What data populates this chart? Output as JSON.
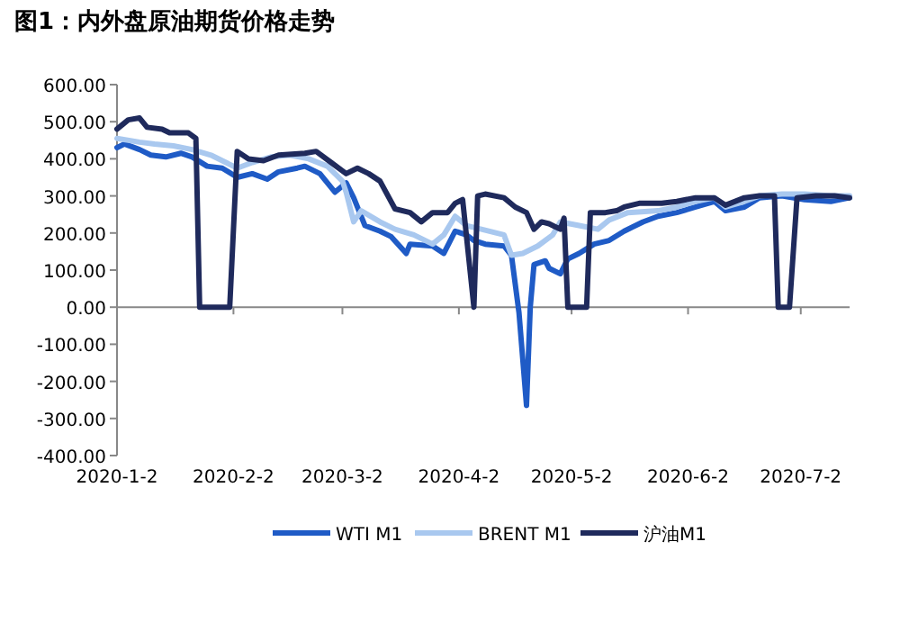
{
  "chart_data": {
    "type": "line",
    "title": "图1：内外盘原油期货价格走势",
    "legend": "bottom",
    "marker": "none",
    "line_style": "solid",
    "xlim": [
      "2020-01-02",
      "2020-07-15"
    ],
    "xticks": [
      {
        "value": "2020-01-02",
        "label": "2020-1-2"
      },
      {
        "value": "2020-02-02",
        "label": "2020-2-2"
      },
      {
        "value": "2020-03-02",
        "label": "2020-3-2"
      },
      {
        "value": "2020-04-02",
        "label": "2020-4-2"
      },
      {
        "value": "2020-05-02",
        "label": "2020-5-2"
      },
      {
        "value": "2020-06-02",
        "label": "2020-6-2"
      },
      {
        "value": "2020-07-02",
        "label": "2020-7-2"
      }
    ],
    "ylim": [
      -400,
      600
    ],
    "yticks": [
      {
        "value": -400,
        "label": "-400.00"
      },
      {
        "value": -300,
        "label": "-300.00"
      },
      {
        "value": -200,
        "label": "-200.00"
      },
      {
        "value": -100,
        "label": "-100.00"
      },
      {
        "value": 0,
        "label": "0.00"
      },
      {
        "value": 100,
        "label": "100.00"
      },
      {
        "value": 200,
        "label": "200.00"
      },
      {
        "value": 300,
        "label": "300.00"
      },
      {
        "value": 400,
        "label": "400.00"
      },
      {
        "value": 500,
        "label": "500.00"
      },
      {
        "value": 600,
        "label": "600.00"
      }
    ],
    "series": [
      {
        "name": "WTI M1",
        "color": "#1f5bc6",
        "x": [
          "2020-01-02",
          "2020-01-04",
          "2020-01-08",
          "2020-01-11",
          "2020-01-15",
          "2020-01-19",
          "2020-01-22",
          "2020-01-26",
          "2020-01-30",
          "2020-02-03",
          "2020-02-07",
          "2020-02-11",
          "2020-02-14",
          "2020-02-19",
          "2020-02-21",
          "2020-02-25",
          "2020-02-29",
          "2020-03-03",
          "2020-03-05",
          "2020-03-08",
          "2020-03-12",
          "2020-03-15",
          "2020-03-19",
          "2020-03-20",
          "2020-03-26",
          "2020-03-29",
          "2020-04-01",
          "2020-04-04",
          "2020-04-06",
          "2020-04-09",
          "2020-04-14",
          "2020-04-16",
          "2020-04-18",
          "2020-04-20",
          "2020-04-21",
          "2020-04-22",
          "2020-04-25",
          "2020-04-26",
          "2020-04-29",
          "2020-05-01",
          "2020-05-04",
          "2020-05-08",
          "2020-05-12",
          "2020-05-16",
          "2020-05-21",
          "2020-05-25",
          "2020-05-30",
          "2020-06-04",
          "2020-06-09",
          "2020-06-12",
          "2020-06-17",
          "2020-06-21",
          "2020-06-27",
          "2020-07-03",
          "2020-07-10",
          "2020-07-15"
        ],
        "values": [
          430,
          440,
          425,
          410,
          405,
          415,
          405,
          380,
          375,
          350,
          360,
          345,
          365,
          375,
          380,
          360,
          310,
          335,
          295,
          220,
          205,
          190,
          145,
          170,
          165,
          145,
          205,
          195,
          180,
          170,
          165,
          140,
          -15,
          -265,
          0,
          115,
          125,
          105,
          90,
          130,
          145,
          170,
          180,
          205,
          230,
          245,
          255,
          270,
          285,
          260,
          270,
          295,
          300,
          290,
          285,
          295
        ]
      },
      {
        "name": "BRENT M1",
        "color": "#a9c8ef",
        "x": [
          "2020-01-02",
          "2020-01-08",
          "2020-01-12",
          "2020-01-17",
          "2020-01-22",
          "2020-01-27",
          "2020-01-31",
          "2020-02-03",
          "2020-02-07",
          "2020-02-12",
          "2020-02-17",
          "2020-02-22",
          "2020-02-27",
          "2020-03-02",
          "2020-03-03",
          "2020-03-05",
          "2020-03-07",
          "2020-03-12",
          "2020-03-16",
          "2020-03-21",
          "2020-03-26",
          "2020-03-29",
          "2020-04-01",
          "2020-04-04",
          "2020-04-08",
          "2020-04-14",
          "2020-04-16",
          "2020-04-19",
          "2020-04-23",
          "2020-04-27",
          "2020-04-29",
          "2020-05-04",
          "2020-05-09",
          "2020-05-12",
          "2020-05-17",
          "2020-05-25",
          "2020-05-30",
          "2020-06-04",
          "2020-06-09",
          "2020-06-12",
          "2020-06-17",
          "2020-06-21",
          "2020-06-27",
          "2020-07-03",
          "2020-07-10",
          "2020-07-15"
        ],
        "values": [
          455,
          445,
          440,
          435,
          425,
          410,
          390,
          375,
          390,
          405,
          410,
          400,
          380,
          340,
          310,
          230,
          260,
          230,
          210,
          195,
          170,
          195,
          245,
          220,
          210,
          195,
          140,
          145,
          165,
          195,
          230,
          220,
          210,
          235,
          255,
          260,
          270,
          285,
          295,
          270,
          285,
          300,
          305,
          305,
          300,
          300
        ]
      },
      {
        "name": "沪油M1",
        "color": "#1f2a5c",
        "x": [
          "2020-01-02",
          "2020-01-05",
          "2020-01-08",
          "2020-01-10",
          "2020-01-14",
          "2020-01-16",
          "2020-01-21",
          "2020-01-23",
          "2020-01-24",
          "2020-02-01",
          "2020-02-03",
          "2020-02-06",
          "2020-02-10",
          "2020-02-14",
          "2020-02-21",
          "2020-02-24",
          "2020-02-28",
          "2020-03-03",
          "2020-03-06",
          "2020-03-09",
          "2020-03-12",
          "2020-03-16",
          "2020-03-20",
          "2020-03-23",
          "2020-03-26",
          "2020-03-30",
          "2020-04-01",
          "2020-04-03",
          "2020-04-06",
          "2020-04-07",
          "2020-04-09",
          "2020-04-14",
          "2020-04-17",
          "2020-04-20",
          "2020-04-22",
          "2020-04-24",
          "2020-04-26",
          "2020-04-29",
          "2020-04-30",
          "2020-05-01",
          "2020-05-06",
          "2020-05-07",
          "2020-05-11",
          "2020-05-14",
          "2020-05-16",
          "2020-05-20",
          "2020-05-26",
          "2020-05-30",
          "2020-06-04",
          "2020-06-09",
          "2020-06-12",
          "2020-06-17",
          "2020-06-21",
          "2020-06-25",
          "2020-06-26",
          "2020-06-29",
          "2020-07-01",
          "2020-07-06",
          "2020-07-11",
          "2020-07-15"
        ],
        "values": [
          480,
          505,
          510,
          485,
          480,
          470,
          470,
          455,
          0,
          0,
          420,
          400,
          395,
          410,
          415,
          420,
          390,
          360,
          375,
          360,
          340,
          265,
          255,
          230,
          255,
          255,
          280,
          290,
          0,
          300,
          305,
          295,
          270,
          255,
          210,
          230,
          225,
          210,
          240,
          0,
          0,
          255,
          255,
          260,
          270,
          280,
          280,
          285,
          295,
          295,
          275,
          295,
          300,
          300,
          0,
          0,
          295,
          300,
          300,
          295
        ]
      }
    ]
  }
}
